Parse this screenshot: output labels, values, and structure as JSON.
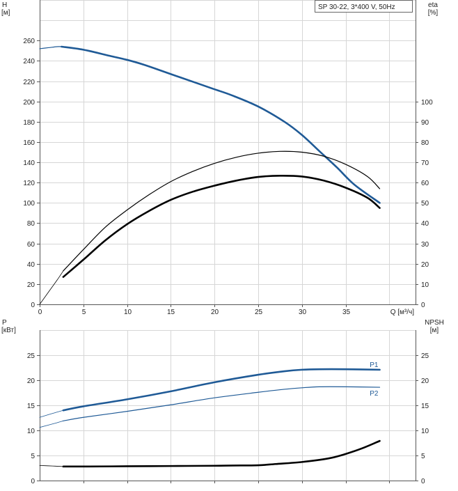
{
  "chart_data": [
    {
      "type": "line",
      "title": "SP 30-22, 3*400 V, 50Hz",
      "xlabel": "Q [м³/ч]",
      "ylabel_left": [
        "H",
        "[м]"
      ],
      "ylabel_right": [
        "eta",
        "[%]"
      ],
      "xlim": [
        0,
        43
      ],
      "ylim_left": [
        0,
        300
      ],
      "ylim_right": [
        0,
        150
      ],
      "x_ticks": [
        "0",
        "5",
        "10",
        "15",
        "20",
        "25",
        "30",
        "35"
      ],
      "y_ticks_left": [
        "0",
        "20",
        "40",
        "60",
        "80",
        "100",
        "120",
        "140",
        "160",
        "180",
        "200",
        "220",
        "240",
        "260"
      ],
      "y_ticks_right": [
        "0",
        "10",
        "20",
        "30",
        "40",
        "50",
        "60",
        "70",
        "80",
        "90",
        "100"
      ],
      "grid": true,
      "series": [
        {
          "axis": "left",
          "color": "#1f5a96",
          "width_class": "thick",
          "x": [
            2.5,
            5,
            8,
            10,
            12,
            15,
            18,
            20,
            22,
            25,
            28,
            30,
            32,
            34,
            36,
            38.9
          ],
          "y": [
            254,
            251,
            245,
            241,
            236,
            227,
            218,
            212,
            206,
            195,
            180,
            167,
            151,
            135,
            118,
            100
          ]
        },
        {
          "axis": "left",
          "color": "#1f5a96",
          "width_class": "thin",
          "x": [
            0,
            1,
            2,
            2.5
          ],
          "y": [
            252,
            253,
            254,
            254
          ]
        },
        {
          "axis": "right",
          "color": "#000000",
          "width_class": "thin",
          "x": [
            2.7,
            5,
            7.5,
            10,
            12.5,
            15,
            17.5,
            20,
            22.5,
            25,
            27.5,
            30,
            32.5,
            35,
            37.5,
            38.9
          ],
          "y": [
            16.5,
            27,
            38,
            46.5,
            54,
            60.5,
            65.5,
            69.5,
            72.5,
            74.5,
            75.4,
            75,
            73,
            69,
            63,
            57
          ]
        },
        {
          "axis": "right",
          "color": "#000000",
          "width_class": "thick",
          "x": [
            2.7,
            5,
            7.5,
            10,
            12.5,
            15,
            17.5,
            20,
            22.5,
            25,
            27.5,
            30,
            32.5,
            35,
            37.5,
            38.9
          ],
          "y": [
            13.5,
            22,
            31.5,
            39.5,
            46,
            51.5,
            55.5,
            58.5,
            61,
            62.8,
            63.4,
            63,
            61,
            57.5,
            52.5,
            47.5
          ]
        },
        {
          "axis": "right",
          "color": "#000000",
          "width_class": "hair",
          "x": [
            0,
            1,
            2,
            2.7
          ],
          "y": [
            0,
            6,
            12,
            16.5
          ]
        }
      ]
    },
    {
      "type": "line",
      "xlabel": "",
      "ylabel_left": [
        "P",
        "[кВт]"
      ],
      "ylabel_right": [
        "NPSH",
        "[м]"
      ],
      "xlim": [
        0,
        43
      ],
      "ylim_left": [
        0,
        30
      ],
      "ylim_right": [
        0,
        30
      ],
      "y_ticks_left": [
        "0",
        "5",
        "10",
        "15",
        "20",
        "25"
      ],
      "y_ticks_right": [
        "0",
        "5",
        "10",
        "15",
        "20",
        "25"
      ],
      "grid": true,
      "series": [
        {
          "name": "P1",
          "axis": "left",
          "color": "#1f5a96",
          "width_class": "thick",
          "x": [
            2.7,
            5,
            10,
            15,
            20,
            25,
            28,
            30,
            32,
            35,
            38.9
          ],
          "y": [
            14.0,
            14.8,
            16.2,
            17.8,
            19.6,
            21.1,
            21.8,
            22.1,
            22.2,
            22.2,
            22.1
          ]
        },
        {
          "name": "P2",
          "axis": "left",
          "color": "#1f5a96",
          "width_class": "thin",
          "x": [
            2.7,
            5,
            10,
            15,
            20,
            25,
            28,
            30,
            32,
            35,
            38.9
          ],
          "y": [
            11.9,
            12.6,
            13.8,
            15.1,
            16.5,
            17.6,
            18.2,
            18.5,
            18.7,
            18.7,
            18.6
          ]
        },
        {
          "axis": "left",
          "color": "#1f5a96",
          "width_class": "hair",
          "x": [
            0,
            1.5,
            2.7
          ],
          "y": [
            12.6,
            13.4,
            14.0
          ]
        },
        {
          "axis": "left",
          "color": "#1f5a96",
          "width_class": "hair",
          "x": [
            0,
            1.5,
            2.7
          ],
          "y": [
            10.6,
            11.3,
            11.9
          ]
        },
        {
          "axis": "right",
          "color": "#000000",
          "width_class": "thick",
          "x": [
            2.7,
            5,
            10,
            15,
            20,
            22,
            25,
            27,
            30,
            33,
            35,
            37,
            38.9
          ],
          "y": [
            2.8,
            2.8,
            2.85,
            2.9,
            2.95,
            3.0,
            3.05,
            3.3,
            3.7,
            4.4,
            5.3,
            6.5,
            7.9
          ]
        },
        {
          "axis": "right",
          "color": "#000000",
          "width_class": "hair",
          "x": [
            0,
            1.5,
            2.7
          ],
          "y": [
            3.0,
            2.9,
            2.8
          ]
        }
      ]
    }
  ]
}
